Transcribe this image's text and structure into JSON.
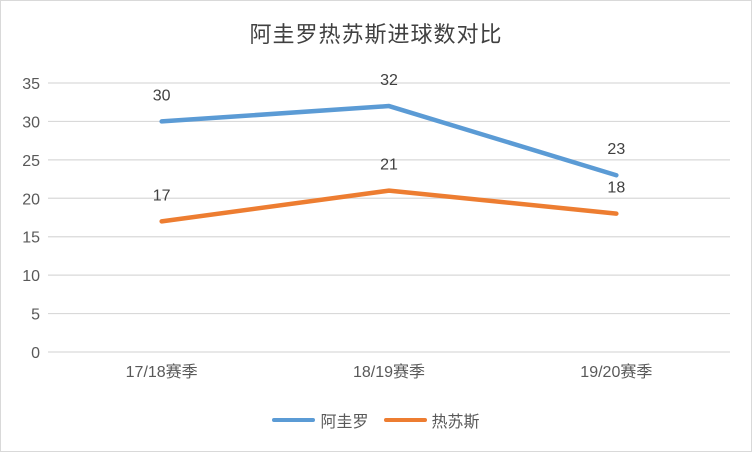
{
  "chart_data": {
    "type": "line",
    "title": "阿圭罗热苏斯进球数对比",
    "categories": [
      "17/18赛季",
      "18/19赛季",
      "19/20赛季"
    ],
    "series": [
      {
        "name": "阿圭罗",
        "values": [
          30,
          32,
          23
        ],
        "color": "#5B9BD5"
      },
      {
        "name": "热苏斯",
        "values": [
          17,
          21,
          18
        ],
        "color": "#ED7D31"
      }
    ],
    "ylim": [
      0,
      35
    ],
    "yticks": [
      0,
      5,
      10,
      15,
      20,
      25,
      30,
      35
    ],
    "xlabel": "",
    "ylabel": "",
    "grid": true,
    "data_labels": true,
    "legend_position": "bottom"
  },
  "style_colors": {
    "background": "#FFFFFF",
    "border": "#D9D9D9",
    "gridline": "#D9D9D9",
    "axis_text": "#595959",
    "data_label_text": "#404040",
    "title_text": "#404040"
  }
}
